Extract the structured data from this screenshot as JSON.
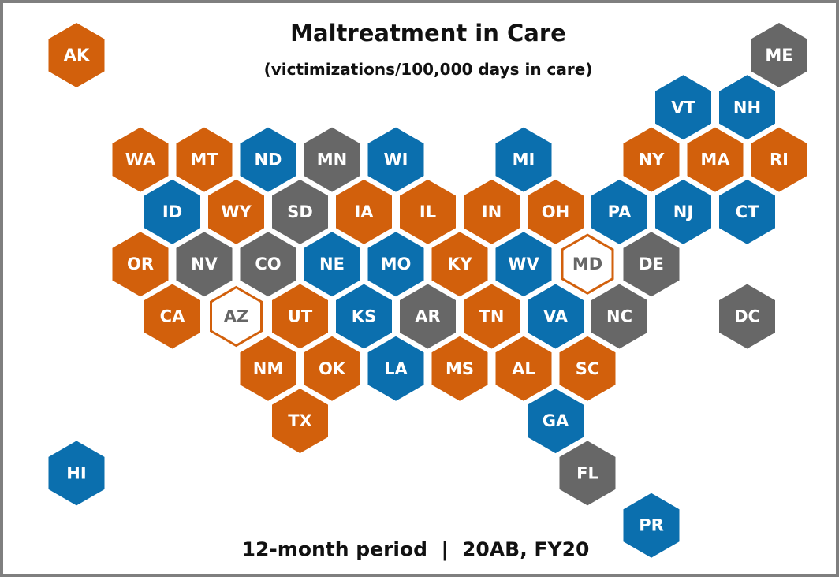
{
  "title": "Maltreatment in Care",
  "subtitle": "(victimizations/100,000 days in care)",
  "footer": "12-month period  |  20AB, FY20",
  "states": [
    {
      "label": "AK",
      "color": "#d2600c"
    },
    {
      "label": "ME",
      "color": "#676767"
    },
    {
      "label": "VT",
      "color": "#0b6fae"
    },
    {
      "label": "NH",
      "color": "#0b6fae"
    },
    {
      "label": "WA",
      "color": "#d2600c"
    },
    {
      "label": "MT",
      "color": "#d2600c"
    },
    {
      "label": "ND",
      "color": "#0b6fae"
    },
    {
      "label": "MN",
      "color": "#676767"
    },
    {
      "label": "WI",
      "color": "#0b6fae"
    },
    {
      "label": "MI",
      "color": "#0b6fae"
    },
    {
      "label": "NY",
      "color": "#d2600c"
    },
    {
      "label": "MA",
      "color": "#d2600c"
    },
    {
      "label": "RI",
      "color": "#d2600c"
    },
    {
      "label": "ID",
      "color": "#0b6fae"
    },
    {
      "label": "WY",
      "color": "#d2600c"
    },
    {
      "label": "SD",
      "color": "#676767"
    },
    {
      "label": "IA",
      "color": "#d2600c"
    },
    {
      "label": "IL",
      "color": "#d2600c"
    },
    {
      "label": "IN",
      "color": "#d2600c"
    },
    {
      "label": "OH",
      "color": "#d2600c"
    },
    {
      "label": "PA",
      "color": "#0b6fae"
    },
    {
      "label": "NJ",
      "color": "#0b6fae"
    },
    {
      "label": "CT",
      "color": "#0b6fae"
    },
    {
      "label": "OR",
      "color": "#d2600c"
    },
    {
      "label": "NV",
      "color": "#676767"
    },
    {
      "label": "CO",
      "color": "#676767"
    },
    {
      "label": "NE",
      "color": "#0b6fae"
    },
    {
      "label": "MO",
      "color": "#0b6fae"
    },
    {
      "label": "KY",
      "color": "#d2600c"
    },
    {
      "label": "WV",
      "color": "#0b6fae"
    },
    {
      "label": "MD",
      "color": "#d2600c",
      "outline": true
    },
    {
      "label": "DE",
      "color": "#676767"
    },
    {
      "label": "CA",
      "color": "#d2600c"
    },
    {
      "label": "AZ",
      "color": "#d2600c",
      "outline": true
    },
    {
      "label": "UT",
      "color": "#d2600c"
    },
    {
      "label": "KS",
      "color": "#0b6fae"
    },
    {
      "label": "AR",
      "color": "#676767"
    },
    {
      "label": "TN",
      "color": "#d2600c"
    },
    {
      "label": "VA",
      "color": "#0b6fae"
    },
    {
      "label": "NC",
      "color": "#676767"
    },
    {
      "label": "DC",
      "color": "#676767"
    },
    {
      "label": "NM",
      "color": "#d2600c"
    },
    {
      "label": "OK",
      "color": "#d2600c"
    },
    {
      "label": "LA",
      "color": "#0b6fae"
    },
    {
      "label": "MS",
      "color": "#d2600c"
    },
    {
      "label": "AL",
      "color": "#d2600c"
    },
    {
      "label": "SC",
      "color": "#d2600c"
    },
    {
      "label": "TX",
      "color": "#d2600c"
    },
    {
      "label": "GA",
      "color": "#0b6fae"
    },
    {
      "label": "HI",
      "color": "#0b6fae"
    },
    {
      "label": "FL",
      "color": "#676767"
    },
    {
      "label": "PR",
      "color": "#0b6fae"
    }
  ]
}
